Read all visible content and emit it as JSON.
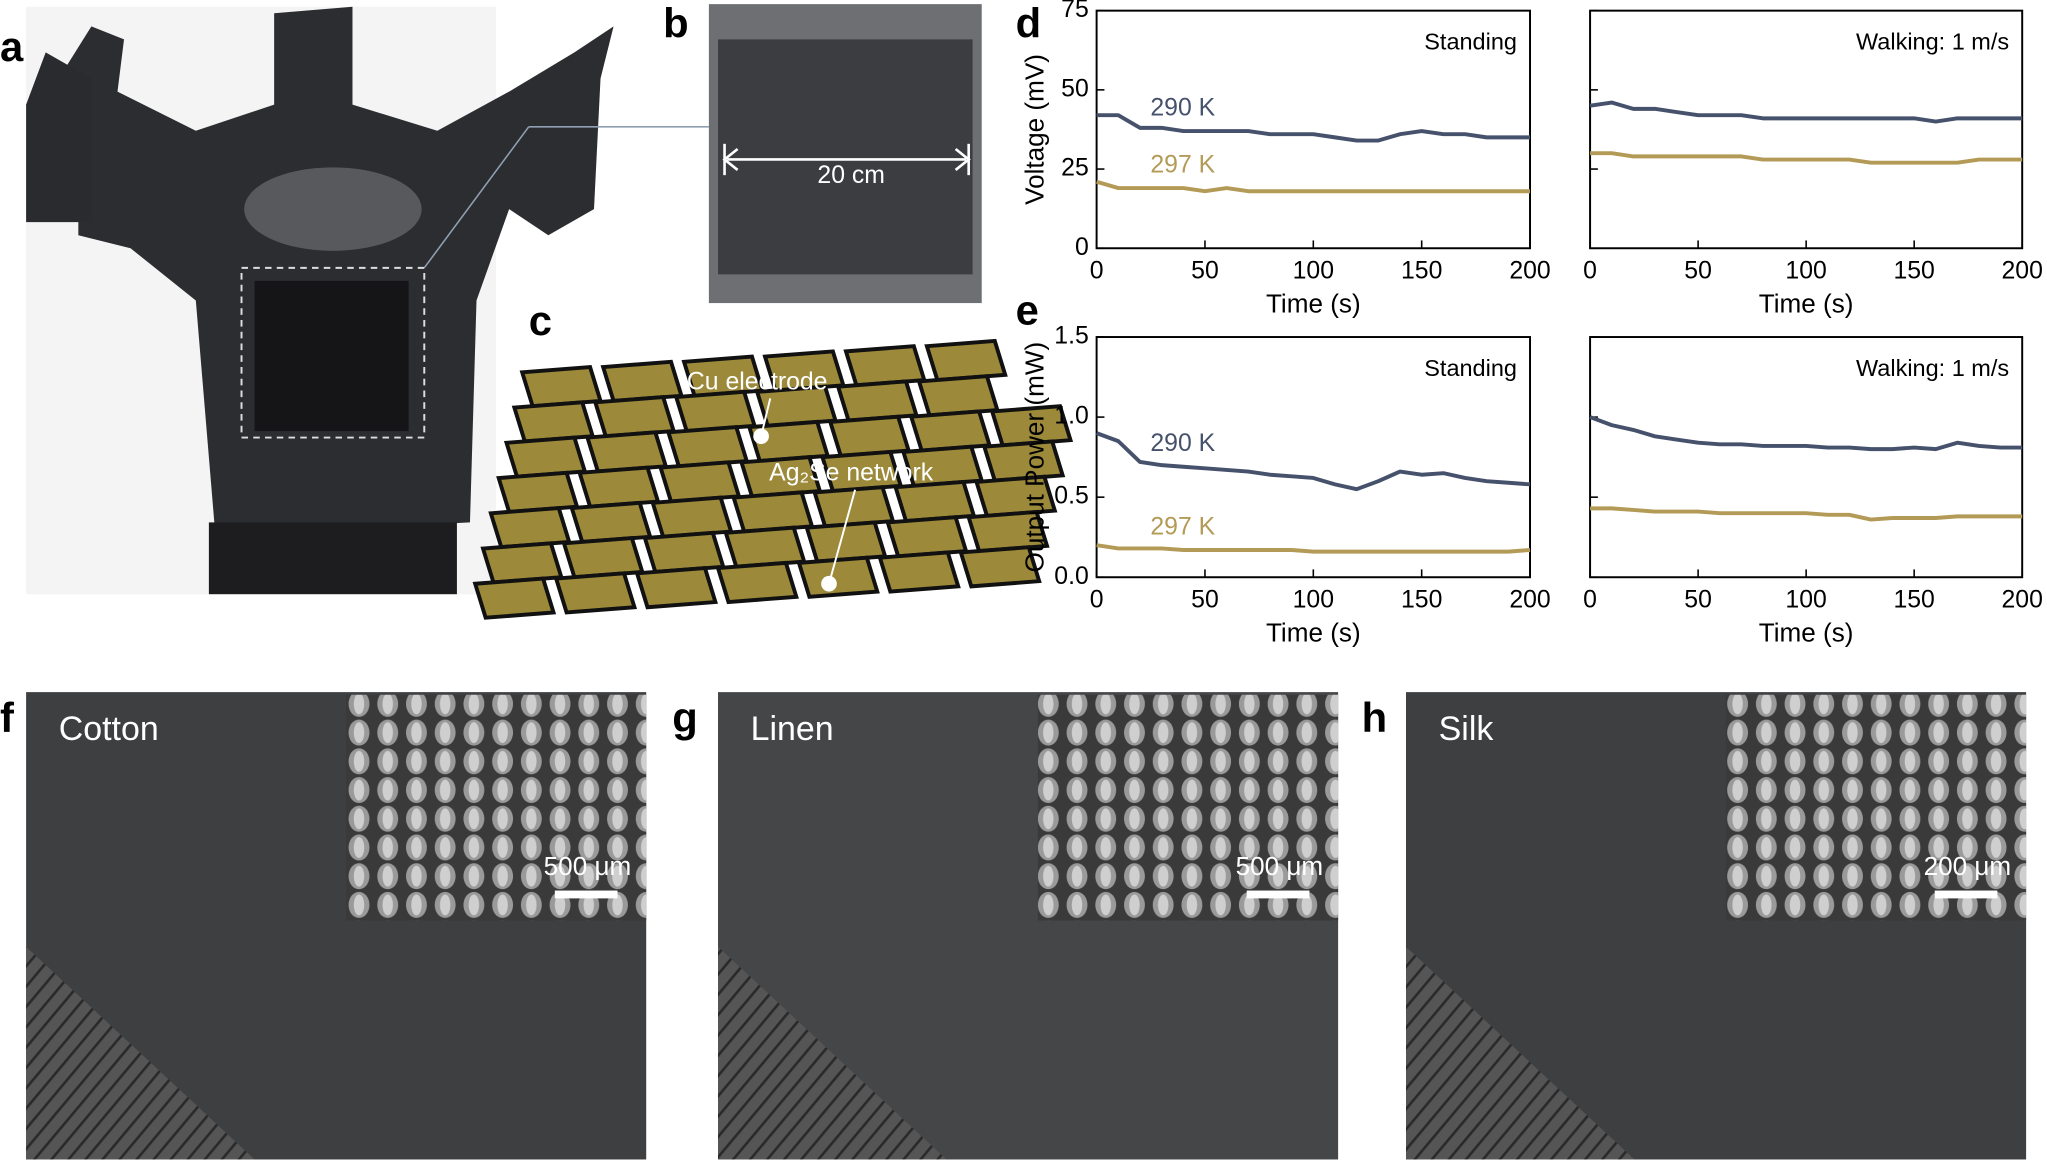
{
  "panel_labels": [
    "a",
    "b",
    "c",
    "d",
    "e",
    "f",
    "g",
    "h"
  ],
  "photo_b": {
    "dimension": "20 cm"
  },
  "diagram_c": {
    "labels": [
      "Cu electrode",
      "Ag₂Se network"
    ]
  },
  "chart_data": [
    {
      "type": "line",
      "annotation": "Standing",
      "xlabel": "Time (s)",
      "ylabel": "Voltage (mV)",
      "x": [
        0,
        10,
        20,
        30,
        40,
        50,
        60,
        70,
        80,
        90,
        100,
        110,
        120,
        130,
        140,
        150,
        160,
        170,
        180,
        190,
        200
      ],
      "xlim": [
        0,
        200
      ],
      "xticks": [
        0,
        50,
        100,
        150,
        200
      ],
      "ylim": [
        0,
        75
      ],
      "yticks": [
        0,
        25,
        50,
        75
      ],
      "show_ytick_labels": true,
      "series": [
        {
          "name": "290 K",
          "color": "#46526c",
          "values": [
            42,
            42,
            38,
            38,
            37,
            37,
            37,
            37,
            36,
            36,
            36,
            35,
            34,
            34,
            36,
            37,
            36,
            36,
            35,
            35,
            35
          ]
        },
        {
          "name": "297 K",
          "color": "#b39b57",
          "values": [
            21,
            19,
            19,
            19,
            19,
            18,
            19,
            18,
            18,
            18,
            18,
            18,
            18,
            18,
            18,
            18,
            18,
            18,
            18,
            18,
            18
          ]
        }
      ]
    },
    {
      "type": "line",
      "annotation": "Walking: 1 m/s",
      "xlabel": "Time (s)",
      "x": [
        0,
        10,
        20,
        30,
        40,
        50,
        60,
        70,
        80,
        90,
        100,
        110,
        120,
        130,
        140,
        150,
        160,
        170,
        180,
        190,
        200
      ],
      "xlim": [
        0,
        200
      ],
      "xticks": [
        0,
        50,
        100,
        150,
        200
      ],
      "ylim": [
        0,
        75
      ],
      "yticks": [
        0,
        25,
        50,
        75
      ],
      "show_ytick_labels": false,
      "series": [
        {
          "color": "#46526c",
          "values": [
            45,
            46,
            44,
            44,
            43,
            42,
            42,
            42,
            41,
            41,
            41,
            41,
            41,
            41,
            41,
            41,
            40,
            41,
            41,
            41,
            41
          ]
        },
        {
          "color": "#b39b57",
          "values": [
            30,
            30,
            29,
            29,
            29,
            29,
            29,
            29,
            28,
            28,
            28,
            28,
            28,
            27,
            27,
            27,
            27,
            27,
            28,
            28,
            28
          ]
        }
      ]
    },
    {
      "type": "line",
      "annotation": "Standing",
      "xlabel": "Time (s)",
      "ylabel": "Output Power (mW)",
      "x": [
        0,
        10,
        20,
        30,
        40,
        50,
        60,
        70,
        80,
        90,
        100,
        110,
        120,
        130,
        140,
        150,
        160,
        170,
        180,
        190,
        200
      ],
      "xlim": [
        0,
        200
      ],
      "xticks": [
        0,
        50,
        100,
        150,
        200
      ],
      "ylim": [
        0,
        1.5
      ],
      "yticks": [
        {
          "value": 0,
          "label": "0.0"
        },
        0.5,
        {
          "value": 1,
          "label": "1.0"
        },
        1.5
      ],
      "show_ytick_labels": true,
      "series": [
        {
          "name": "290 K",
          "color": "#46526c",
          "values": [
            0.9,
            0.85,
            0.72,
            0.7,
            0.69,
            0.68,
            0.67,
            0.66,
            0.64,
            0.63,
            0.62,
            0.58,
            0.55,
            0.6,
            0.66,
            0.64,
            0.65,
            0.62,
            0.6,
            0.59,
            0.58
          ]
        },
        {
          "name": "297 K",
          "color": "#b39b57",
          "values": [
            0.2,
            0.18,
            0.18,
            0.18,
            0.17,
            0.17,
            0.17,
            0.17,
            0.17,
            0.17,
            0.16,
            0.16,
            0.16,
            0.16,
            0.16,
            0.16,
            0.16,
            0.16,
            0.16,
            0.16,
            0.17
          ]
        }
      ]
    },
    {
      "type": "line",
      "annotation": "Walking: 1 m/s",
      "xlabel": "Time (s)",
      "x": [
        0,
        10,
        20,
        30,
        40,
        50,
        60,
        70,
        80,
        90,
        100,
        110,
        120,
        130,
        140,
        150,
        160,
        170,
        180,
        190,
        200
      ],
      "xlim": [
        0,
        200
      ],
      "xticks": [
        0,
        50,
        100,
        150,
        200
      ],
      "ylim": [
        0,
        1.5
      ],
      "yticks": [
        {
          "value": 0,
          "label": "0.0"
        },
        0.5,
        {
          "value": 1,
          "label": "1.0"
        },
        1.5
      ],
      "show_ytick_labels": false,
      "series": [
        {
          "color": "#46526c",
          "values": [
            1.0,
            0.95,
            0.92,
            0.88,
            0.86,
            0.84,
            0.83,
            0.83,
            0.82,
            0.82,
            0.82,
            0.81,
            0.81,
            0.8,
            0.8,
            0.81,
            0.8,
            0.84,
            0.82,
            0.81,
            0.81
          ]
        },
        {
          "color": "#b39b57",
          "values": [
            0.43,
            0.43,
            0.42,
            0.41,
            0.41,
            0.41,
            0.4,
            0.4,
            0.4,
            0.4,
            0.4,
            0.39,
            0.39,
            0.36,
            0.37,
            0.37,
            0.37,
            0.38,
            0.38,
            0.38,
            0.38
          ]
        }
      ]
    }
  ],
  "fabrics": [
    {
      "name": "Cotton",
      "scale_bar": "500 μm"
    },
    {
      "name": "Linen",
      "scale_bar": "500 μm"
    },
    {
      "name": "Silk",
      "scale_bar": "200 μm"
    }
  ]
}
